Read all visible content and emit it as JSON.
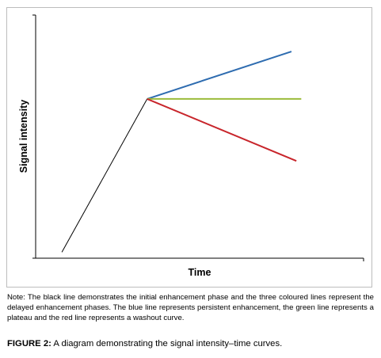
{
  "chart_data": {
    "type": "line",
    "title": "",
    "xlabel": "Time",
    "ylabel": "Signal intensity",
    "xlim": [
      0,
      10
    ],
    "ylim": [
      0,
      10
    ],
    "grid": false,
    "legend": "none",
    "series": [
      {
        "color": "#000000",
        "x": [
          0.8,
          3.4
        ],
        "y": [
          0.25,
          6.55
        ]
      },
      {
        "color": "#2e6cb0",
        "x": [
          3.4,
          7.8
        ],
        "y": [
          6.55,
          8.5
        ]
      },
      {
        "color": "#9bbb3a",
        "x": [
          3.4,
          8.1
        ],
        "y": [
          6.55,
          6.55
        ]
      },
      {
        "color": "#c8252b",
        "x": [
          3.4,
          7.95
        ],
        "y": [
          6.55,
          4.0
        ]
      }
    ]
  },
  "note": "Note: The black line demonstrates the initial enhancement phase and the three coloured lines represent the delayed enhancement phases. The blue line represents persistent enhancement, the green line represents a plateau and the red line represents a washout curve.",
  "caption": {
    "label": "FIGURE 2:",
    "text": " A diagram demonstrating the signal intensity–time curves."
  }
}
